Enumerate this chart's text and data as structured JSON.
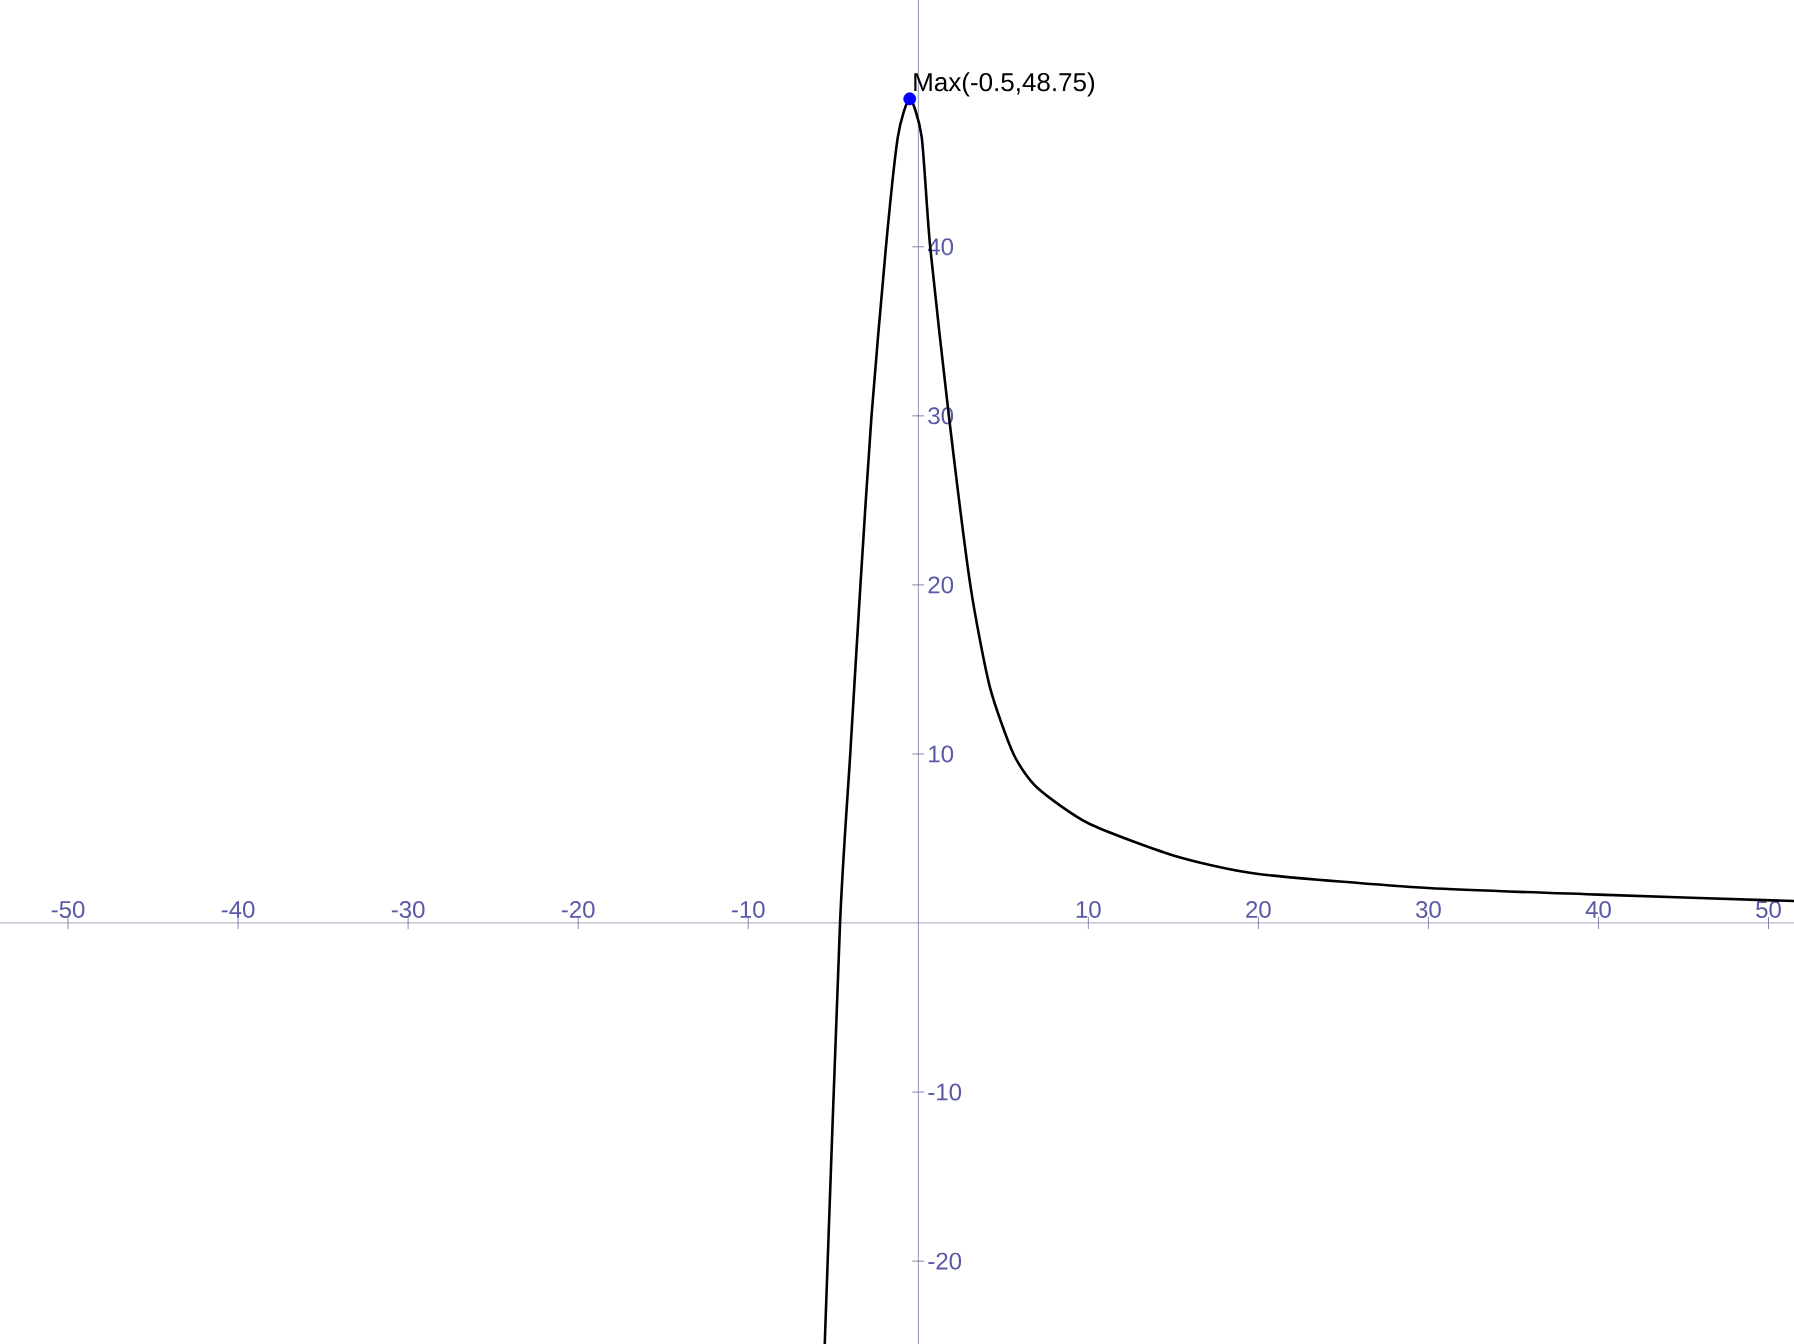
{
  "chart_data": {
    "type": "line",
    "xlim": [
      -54,
      51.5
    ],
    "ylim": [
      -24.9,
      54.6
    ],
    "xticks": [
      -50,
      -40,
      -30,
      -20,
      -10,
      10,
      20,
      30,
      40,
      50
    ],
    "yticks": [
      -20,
      -10,
      10,
      20,
      30,
      40
    ],
    "series": [
      {
        "color": "#000000",
        "marker": "none",
        "x": [
          -5.5,
          -4.6,
          -4.0,
          -3.4,
          -2.75,
          -1.9,
          -1.2,
          -0.5,
          0.2,
          0.7,
          1.8,
          3.06,
          4.2,
          5.6,
          7,
          10,
          15,
          20,
          30,
          40,
          51.5
        ],
        "values": [
          -24.9,
          0,
          10,
          20,
          30,
          40,
          46.5,
          48.75,
          46.5,
          40,
          30,
          20,
          14,
          10,
          8,
          5.9,
          4,
          2.9,
          2.07,
          1.68,
          1.3
        ]
      },
      {
        "type": "scatter",
        "color": "#0000ff",
        "marker": "circle",
        "x": [
          -0.5
        ],
        "values": [
          48.75
        ]
      }
    ],
    "annotations": [
      {
        "text": "Max(-0.5,48.75)",
        "x": -0.5,
        "y": 48.75
      }
    ]
  }
}
